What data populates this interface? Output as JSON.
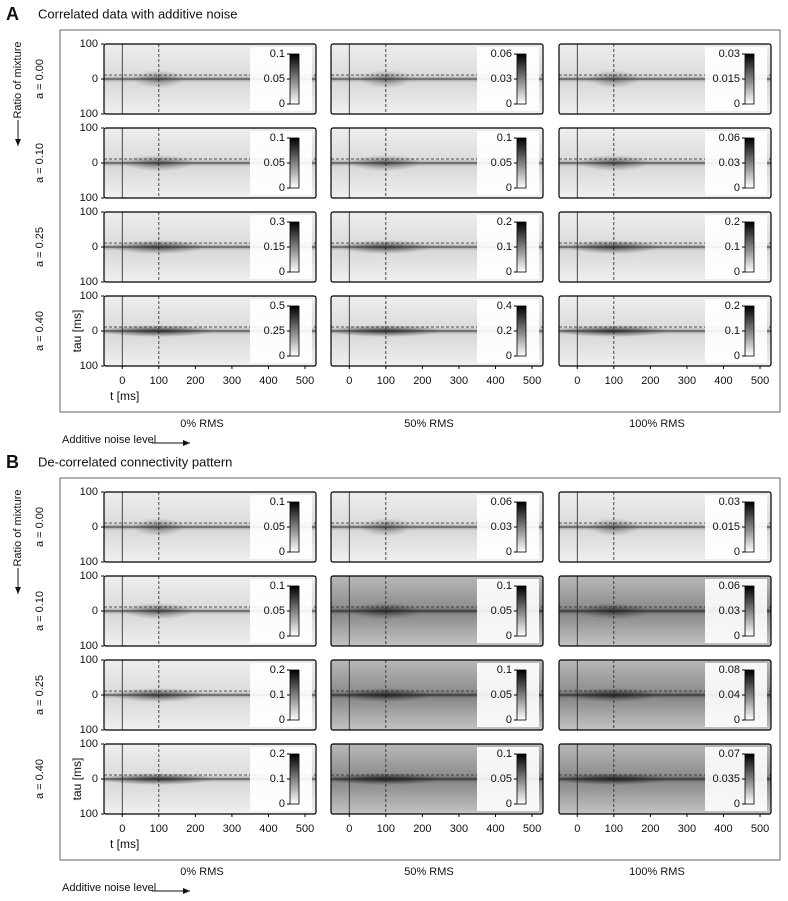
{
  "panels": [
    {
      "label": "A",
      "title": "Correlated data with additive noise",
      "row_axis_label": "Ratio of mixture",
      "rows": [
        "a = 0.00",
        "a = 0.10",
        "a = 0.25",
        "a = 0.40"
      ],
      "column_axis_label": "Additive noise level",
      "columns": [
        "0% RMS",
        "50% RMS",
        "100% RMS"
      ],
      "y_axis_label": "tau [ms]",
      "x_axis_label": "t [ms]",
      "ylim": [
        -100,
        100
      ],
      "yticks": [
        100,
        0,
        {
          "value": -100,
          "label": "100"
        }
      ],
      "xlim": [
        -50,
        530
      ],
      "xticks": [
        0,
        100,
        200,
        300,
        400,
        500
      ],
      "colorbars": [
        [
          [
            0,
            0.05,
            0.1
          ],
          [
            0,
            0.03,
            0.06
          ],
          [
            0,
            0.015,
            0.03
          ]
        ],
        [
          [
            0,
            0.05,
            0.1
          ],
          [
            0,
            0.05,
            0.1
          ],
          [
            0,
            0.03,
            0.06
          ]
        ],
        [
          [
            0,
            0.15,
            0.3
          ],
          [
            0,
            0.1,
            0.2
          ],
          [
            0,
            0.1,
            0.2
          ]
        ],
        [
          [
            0,
            0.25,
            0.5
          ],
          [
            0,
            0.2,
            0.4
          ],
          [
            0,
            0.1,
            0.2
          ]
        ]
      ]
    },
    {
      "label": "B",
      "title": "De-correlated connectivity pattern",
      "row_axis_label": "Ratio of mixture",
      "rows": [
        "a = 0.00",
        "a = 0.10",
        "a = 0.25",
        "a = 0.40"
      ],
      "column_axis_label": "Additive noise level",
      "columns": [
        "0% RMS",
        "50% RMS",
        "100% RMS"
      ],
      "y_axis_label": "tau [ms]",
      "x_axis_label": "t [ms]",
      "ylim": [
        -100,
        100
      ],
      "yticks": [
        100,
        0,
        {
          "value": -100,
          "label": "100"
        }
      ],
      "xlim": [
        -50,
        530
      ],
      "xticks": [
        0,
        100,
        200,
        300,
        400,
        500
      ],
      "colorbars": [
        [
          [
            0,
            0.05,
            0.1
          ],
          [
            0,
            0.03,
            0.06
          ],
          [
            0,
            0.015,
            0.03
          ]
        ],
        [
          [
            0,
            0.05,
            0.1
          ],
          [
            0,
            0.05,
            0.1
          ],
          [
            0,
            0.03,
            0.06
          ]
        ],
        [
          [
            0,
            0.1,
            0.2
          ],
          [
            0,
            0.05,
            0.1
          ],
          [
            0,
            0.04,
            0.08
          ]
        ],
        [
          [
            0,
            0.1,
            0.2
          ],
          [
            0,
            0.05,
            0.1
          ],
          [
            0,
            0.035,
            0.07
          ]
        ]
      ]
    }
  ]
}
